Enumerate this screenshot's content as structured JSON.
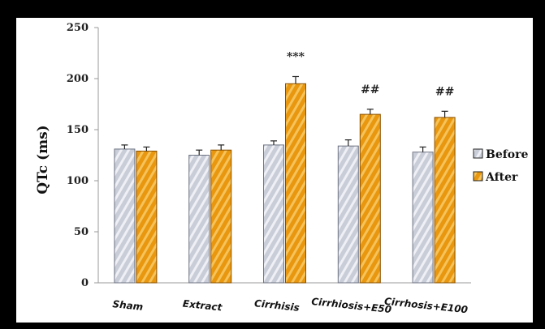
{
  "chart_data": {
    "type": "bar",
    "title": "",
    "xlabel": "",
    "ylabel": "QTc (ms)",
    "ylim": [
      0,
      250
    ],
    "yticks": [
      0,
      50,
      100,
      150,
      200,
      250
    ],
    "grid": false,
    "legend_position": "right",
    "categories": [
      "Sham",
      "Extract",
      "Cirrhisis",
      "Cirrhiosis+E50",
      "Cirrhosis+E100"
    ],
    "series": [
      {
        "name": "Before",
        "color": "#c9cdd8",
        "values": [
          131,
          125,
          135,
          134,
          128
        ],
        "errors": [
          4,
          5,
          4,
          6,
          5
        ]
      },
      {
        "name": "After",
        "color": "#e8970f",
        "values": [
          129,
          130,
          195,
          165,
          162
        ],
        "errors": [
          4,
          5,
          7,
          5,
          6
        ]
      }
    ],
    "annotations": [
      {
        "category": "Cirrhisis",
        "series": "After",
        "text": "***"
      },
      {
        "category": "Cirrhiosis+E50",
        "series": "After",
        "text": "##"
      },
      {
        "category": "Cirrhosis+E100",
        "series": "After",
        "text": "##"
      }
    ]
  }
}
